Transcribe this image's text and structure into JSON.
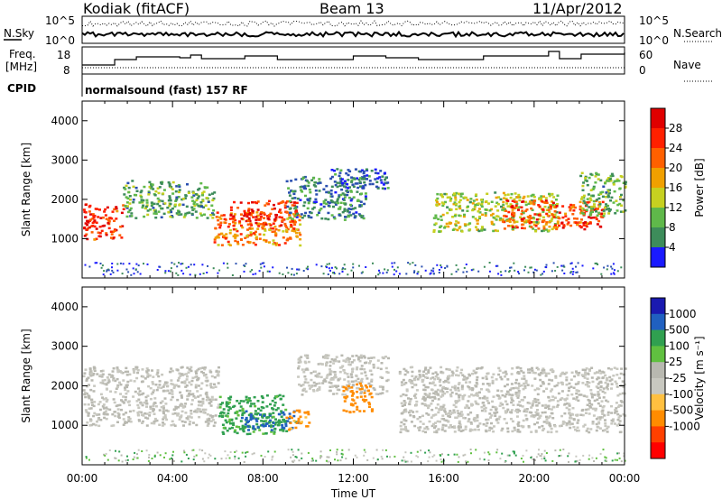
{
  "header": {
    "station": "Kodiak (fitACF)",
    "beam": "Beam 13",
    "date": "11/Apr/2012"
  },
  "noise_panel": {
    "left_label": "N.Sky",
    "right_label": "N.Search",
    "left_ticks": [
      "10^5",
      "10^0"
    ],
    "right_ticks": [
      "10^5",
      "10^0"
    ]
  },
  "freq_panel": {
    "left_label_line1": "Freq.",
    "left_label_line2": "[MHz]",
    "right_label": "Nave",
    "left_ticks": [
      "18",
      "8"
    ],
    "right_ticks": [
      "60",
      "0"
    ]
  },
  "cpid_panel": {
    "label": "CPID",
    "text": "normalsound (fast) 157 RF"
  },
  "colors": {
    "power": [
      "#1a1aff",
      "#2a4fb0",
      "#3d8c5a",
      "#5fb84a",
      "#c6d020",
      "#f0a000",
      "#ff6000",
      "#ff2000",
      "#e00000"
    ],
    "velocity": [
      "#ff0000",
      "#ff4000",
      "#ff8c00",
      "#ffc040",
      "#c8c8c0",
      "#b8b8b0",
      "#60c040",
      "#30a050",
      "#2060c0",
      "#1a1ab0"
    ]
  },
  "chart_data": [
    {
      "type": "heatmap",
      "name": "power",
      "ylabel": "Slant Range [km]",
      "ylim": [
        0,
        4500
      ],
      "yticks": [
        "1000",
        "2000",
        "3000",
        "4000"
      ],
      "colorbar_label": "Power [dB]",
      "colorbar_ticks": [
        "4",
        "8",
        "12",
        "16",
        "20",
        "24",
        "28"
      ],
      "colorbar_range": [
        0,
        32
      ],
      "xlim_hours": [
        0,
        24
      ],
      "features": [
        {
          "t0": 0.0,
          "t1": 1.8,
          "r0": 1000,
          "r1": 1900,
          "power": 26
        },
        {
          "t0": 1.8,
          "t1": 5.8,
          "r0": 1550,
          "r1": 2500,
          "power": 11
        },
        {
          "t0": 5.8,
          "t1": 9.6,
          "r0": 850,
          "r1": 1700,
          "power": 22
        },
        {
          "t0": 6.5,
          "t1": 9.5,
          "r0": 1350,
          "r1": 2000,
          "power": 27
        },
        {
          "t0": 9.0,
          "t1": 12.5,
          "r0": 1500,
          "r1": 2600,
          "power": 8
        },
        {
          "t0": 11.0,
          "t1": 13.5,
          "r0": 2300,
          "r1": 2800,
          "power": 6
        },
        {
          "t0": 15.5,
          "t1": 21.0,
          "r0": 1200,
          "r1": 2200,
          "power": 15
        },
        {
          "t0": 18.5,
          "t1": 23.0,
          "r0": 1250,
          "r1": 2000,
          "power": 25
        },
        {
          "t0": 22.0,
          "t1": 24.0,
          "r0": 1600,
          "r1": 2700,
          "power": 12
        }
      ]
    },
    {
      "type": "heatmap",
      "name": "velocity",
      "ylabel": "Slant Range [km]",
      "xlabel": "Time UT",
      "ylim": [
        0,
        4500
      ],
      "yticks": [
        "1000",
        "2000",
        "3000",
        "4000"
      ],
      "xticks": [
        "00:00",
        "04:00",
        "08:00",
        "12:00",
        "16:00",
        "20:00",
        "00:00"
      ],
      "colorbar_label": "Velocity [m s⁻¹]",
      "colorbar_ticks": [
        "1000",
        "500",
        "100",
        "25",
        "-25",
        "-100",
        "-500",
        "-1000"
      ],
      "xlim_hours": [
        0,
        24
      ],
      "features": [
        {
          "t0": 0.0,
          "t1": 6.0,
          "r0": 1000,
          "r1": 2500,
          "velocity": 0
        },
        {
          "t0": 6.0,
          "t1": 9.0,
          "r0": 800,
          "r1": 1800,
          "velocity": 150
        },
        {
          "t0": 7.0,
          "t1": 9.5,
          "r0": 900,
          "r1": 1400,
          "velocity": 600
        },
        {
          "t0": 9.0,
          "t1": 10.0,
          "r0": 900,
          "r1": 1400,
          "velocity": -150
        },
        {
          "t0": 9.5,
          "t1": 13.5,
          "r0": 1800,
          "r1": 2800,
          "velocity": 0
        },
        {
          "t0": 11.5,
          "t1": 12.8,
          "r0": 1350,
          "r1": 2100,
          "velocity": -200
        },
        {
          "t0": 14.0,
          "t1": 24.0,
          "r0": 850,
          "r1": 2500,
          "velocity": 0
        }
      ]
    }
  ]
}
